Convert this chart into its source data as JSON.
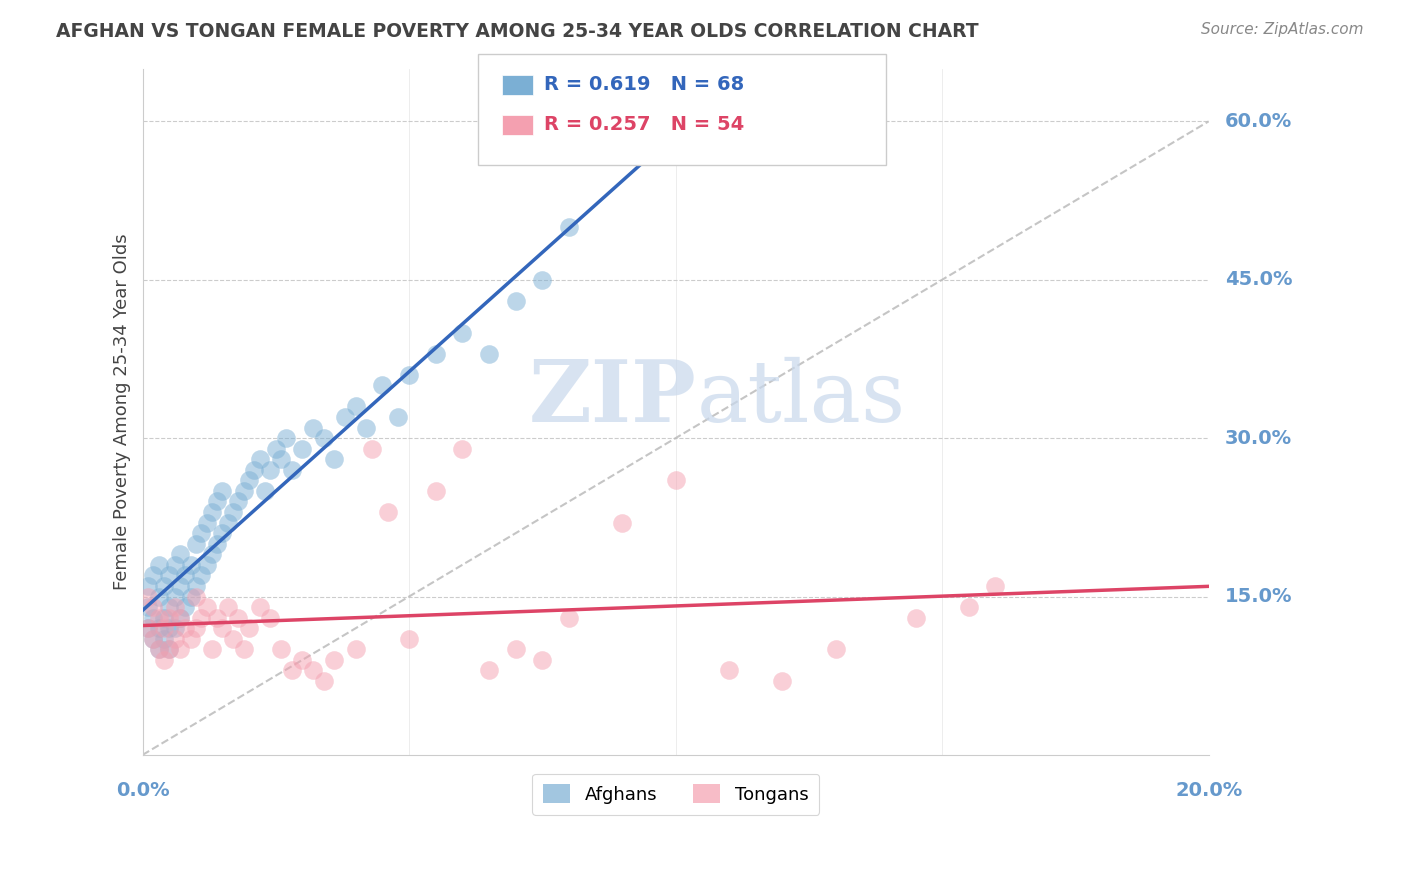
{
  "title": "AFGHAN VS TONGAN FEMALE POVERTY AMONG 25-34 YEAR OLDS CORRELATION CHART",
  "source": "Source: ZipAtlas.com",
  "ylabel": "Female Poverty Among 25-34 Year Olds",
  "afghan_R": "0.619",
  "afghan_N": "68",
  "tongan_R": "0.257",
  "tongan_N": "54",
  "afghan_color": "#7BAFD4",
  "tongan_color": "#F4A0B0",
  "afghan_line_color": "#3366BB",
  "tongan_line_color": "#DD4466",
  "diagonal_color": "#BBBBBB",
  "watermark_color": "#C8D8EC",
  "background_color": "#FFFFFF",
  "grid_color": "#CCCCCC",
  "title_color": "#444444",
  "axis_label_color": "#6699CC",
  "legend_text_afghan_color": "#3366BB",
  "legend_text_tongan_color": "#DD4466",
  "xlim": [
    0.0,
    0.2
  ],
  "ylim": [
    0.0,
    0.65
  ],
  "ytick_vals": [
    0.15,
    0.3,
    0.45,
    0.6
  ],
  "ytick_labels": [
    "15.0%",
    "30.0%",
    "45.0%",
    "60.0%"
  ],
  "xtick_vals": [
    0.0,
    0.2
  ],
  "xtick_labels": [
    "0.0%",
    "20.0%"
  ],
  "afghan_x": [
    0.001,
    0.001,
    0.001,
    0.002,
    0.002,
    0.002,
    0.003,
    0.003,
    0.003,
    0.003,
    0.004,
    0.004,
    0.004,
    0.005,
    0.005,
    0.005,
    0.005,
    0.006,
    0.006,
    0.006,
    0.007,
    0.007,
    0.007,
    0.008,
    0.008,
    0.009,
    0.009,
    0.01,
    0.01,
    0.011,
    0.011,
    0.012,
    0.012,
    0.013,
    0.013,
    0.014,
    0.014,
    0.015,
    0.015,
    0.016,
    0.017,
    0.018,
    0.019,
    0.02,
    0.021,
    0.022,
    0.023,
    0.024,
    0.025,
    0.026,
    0.027,
    0.028,
    0.03,
    0.032,
    0.034,
    0.036,
    0.038,
    0.04,
    0.042,
    0.045,
    0.048,
    0.05,
    0.055,
    0.06,
    0.065,
    0.07,
    0.075,
    0.08
  ],
  "afghan_y": [
    0.12,
    0.14,
    0.16,
    0.11,
    0.13,
    0.17,
    0.1,
    0.12,
    0.15,
    0.18,
    0.11,
    0.13,
    0.16,
    0.1,
    0.12,
    0.14,
    0.17,
    0.12,
    0.15,
    0.18,
    0.13,
    0.16,
    0.19,
    0.14,
    0.17,
    0.15,
    0.18,
    0.16,
    0.2,
    0.17,
    0.21,
    0.18,
    0.22,
    0.19,
    0.23,
    0.2,
    0.24,
    0.21,
    0.25,
    0.22,
    0.23,
    0.24,
    0.25,
    0.26,
    0.27,
    0.28,
    0.25,
    0.27,
    0.29,
    0.28,
    0.3,
    0.27,
    0.29,
    0.31,
    0.3,
    0.28,
    0.32,
    0.33,
    0.31,
    0.35,
    0.32,
    0.36,
    0.38,
    0.4,
    0.38,
    0.43,
    0.45,
    0.5
  ],
  "tongan_x": [
    0.001,
    0.001,
    0.002,
    0.002,
    0.003,
    0.003,
    0.004,
    0.004,
    0.005,
    0.005,
    0.006,
    0.006,
    0.007,
    0.007,
    0.008,
    0.009,
    0.01,
    0.01,
    0.011,
    0.012,
    0.013,
    0.014,
    0.015,
    0.016,
    0.017,
    0.018,
    0.019,
    0.02,
    0.022,
    0.024,
    0.026,
    0.028,
    0.03,
    0.032,
    0.034,
    0.036,
    0.04,
    0.043,
    0.046,
    0.05,
    0.055,
    0.06,
    0.065,
    0.07,
    0.075,
    0.08,
    0.09,
    0.1,
    0.11,
    0.12,
    0.13,
    0.145,
    0.155,
    0.16
  ],
  "tongan_y": [
    0.12,
    0.15,
    0.11,
    0.14,
    0.1,
    0.13,
    0.09,
    0.12,
    0.1,
    0.13,
    0.11,
    0.14,
    0.1,
    0.13,
    0.12,
    0.11,
    0.12,
    0.15,
    0.13,
    0.14,
    0.1,
    0.13,
    0.12,
    0.14,
    0.11,
    0.13,
    0.1,
    0.12,
    0.14,
    0.13,
    0.1,
    0.08,
    0.09,
    0.08,
    0.07,
    0.09,
    0.1,
    0.29,
    0.23,
    0.11,
    0.25,
    0.29,
    0.08,
    0.1,
    0.09,
    0.13,
    0.22,
    0.26,
    0.08,
    0.07,
    0.1,
    0.13,
    0.14,
    0.16
  ]
}
